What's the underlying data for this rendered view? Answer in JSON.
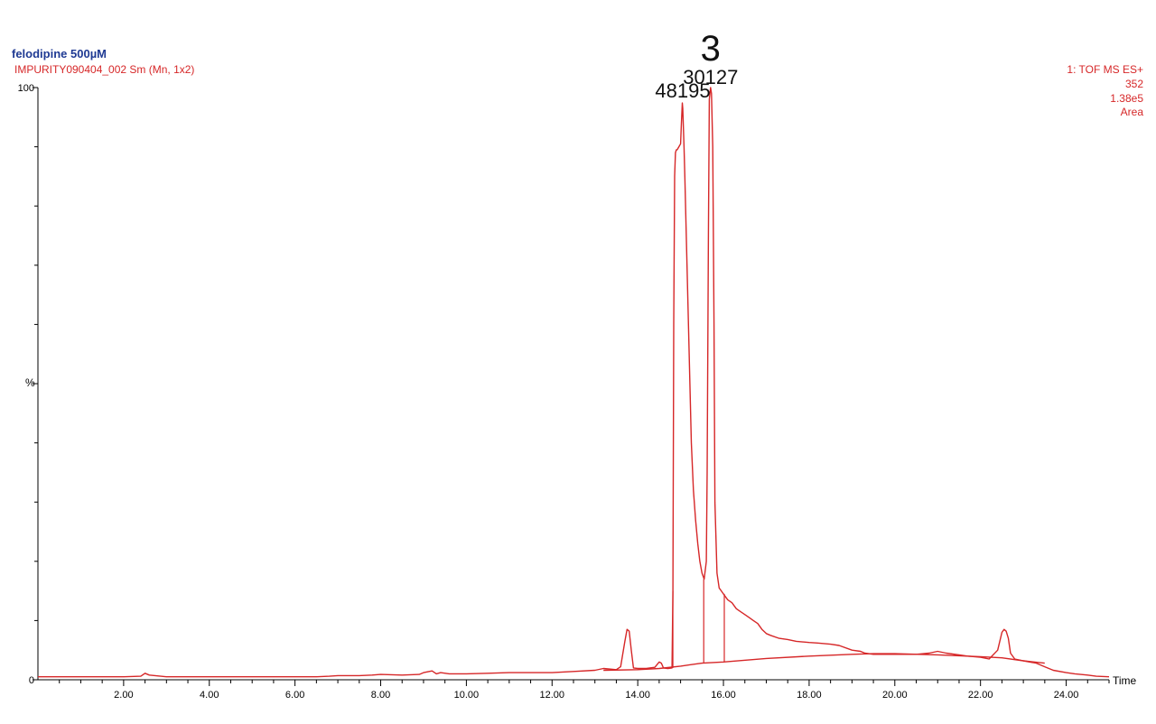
{
  "header": {
    "sample": "felodipine 500µM",
    "file": "IMPURITY090404_002 Sm (Mn, 1x2)",
    "right_info": [
      "1: TOF MS ES+",
      "352",
      "1.38e5",
      "Area"
    ]
  },
  "colors": {
    "trace": "#d62728",
    "title": "#1f3a93",
    "axis": "#000000"
  },
  "chart_data": {
    "type": "line",
    "title": "felodipine 500µM",
    "xlabel": "Time",
    "ylabel": "%",
    "xlim": [
      0.0,
      25.0
    ],
    "ylim": [
      0,
      100
    ],
    "x_ticks": [
      "2.00",
      "4.00",
      "6.00",
      "8.00",
      "10.00",
      "12.00",
      "14.00",
      "16.00",
      "18.00",
      "20.00",
      "22.00",
      "24.00"
    ],
    "y_ticks": [
      "0",
      "100"
    ],
    "annotations": [
      {
        "text": "48195",
        "x": 15.05,
        "y": 97.4,
        "size": "medium"
      },
      {
        "text": "3",
        "x": 15.7,
        "y": 100,
        "size": "large",
        "row": 1
      },
      {
        "text": "30127",
        "x": 15.7,
        "y": 100,
        "size": "medium",
        "row": 2
      }
    ],
    "series": [
      {
        "type": "line",
        "x": [
          0.0,
          0.5,
          1.0,
          1.5,
          2.0,
          2.4,
          2.5,
          2.6,
          3.0,
          4.0,
          5.0,
          6.0,
          6.5,
          6.8,
          7.0,
          7.5,
          7.8,
          8.0,
          8.5,
          8.9,
          9.0,
          9.2,
          9.3,
          9.4,
          9.6,
          10.0,
          10.5,
          11.0,
          11.5,
          12.0,
          12.5,
          13.0,
          13.2,
          13.5,
          13.6,
          13.7,
          13.75,
          13.8,
          13.85,
          13.9,
          14.0,
          14.2,
          14.4,
          14.5,
          14.55,
          14.6,
          14.7,
          14.8,
          14.82,
          14.84,
          14.86,
          14.88,
          14.9,
          14.92,
          14.96,
          15.0,
          15.02,
          15.04,
          15.05,
          15.08,
          15.1,
          15.15,
          15.2,
          15.25,
          15.3,
          15.35,
          15.4,
          15.45,
          15.5,
          15.55,
          15.6,
          15.62,
          15.65,
          15.67,
          15.7,
          15.72,
          15.75,
          15.78,
          15.8,
          15.85,
          15.9,
          15.95,
          16.0,
          16.05,
          16.1,
          16.2,
          16.3,
          16.4,
          16.5,
          16.6,
          16.7,
          16.8,
          16.9,
          17.0,
          17.1,
          17.3,
          17.5,
          17.7,
          18.0,
          18.2,
          18.5,
          18.7,
          19.0,
          19.2,
          19.3,
          19.5,
          20.0,
          20.5,
          20.8,
          21.0,
          21.2,
          21.5,
          21.7,
          22.0,
          22.2,
          22.4,
          22.5,
          22.55,
          22.6,
          22.65,
          22.7,
          22.8,
          23.0,
          23.3,
          23.5,
          23.7,
          24.0,
          24.2,
          24.5,
          24.7,
          25.0
        ],
        "y": [
          0.5,
          0.5,
          0.5,
          0.5,
          0.5,
          0.6,
          1.1,
          0.8,
          0.5,
          0.5,
          0.5,
          0.5,
          0.5,
          0.6,
          0.7,
          0.7,
          0.8,
          0.9,
          0.8,
          0.9,
          1.2,
          1.5,
          1.0,
          1.2,
          1.0,
          1.0,
          1.1,
          1.2,
          1.2,
          1.2,
          1.4,
          1.6,
          1.9,
          1.7,
          2.2,
          6.5,
          8.5,
          8.2,
          5.0,
          2.0,
          1.9,
          1.9,
          2.1,
          3.0,
          2.8,
          2.0,
          1.9,
          2.0,
          15.0,
          60.0,
          85.0,
          89.0,
          89.5,
          89.5,
          90.0,
          90.5,
          94.0,
          97.4,
          96.5,
          90.0,
          85.0,
          70.0,
          55.0,
          40.0,
          32.0,
          27.0,
          23.0,
          20.0,
          18.0,
          17.0,
          20.0,
          35.0,
          75.0,
          98.0,
          100.0,
          99.0,
          90.0,
          60.0,
          30.0,
          18.0,
          15.5,
          15.0,
          14.5,
          14.0,
          13.5,
          13.0,
          12.0,
          11.5,
          11.0,
          10.5,
          10.0,
          9.5,
          8.5,
          7.8,
          7.5,
          7.0,
          6.8,
          6.5,
          6.3,
          6.2,
          6.0,
          5.8,
          5.0,
          4.8,
          4.5,
          4.3,
          4.3,
          4.3,
          4.5,
          4.8,
          4.5,
          4.2,
          4.0,
          3.8,
          3.5,
          5.0,
          8.0,
          8.5,
          8.2,
          7.0,
          4.5,
          3.5,
          3.2,
          2.8,
          2.2,
          1.6,
          1.2,
          1.0,
          0.8,
          0.6,
          0.5
        ]
      },
      {
        "type": "baseline",
        "x": [
          13.2,
          14.0,
          14.5,
          15.0,
          15.5,
          16.0,
          17.0,
          18.0,
          19.0,
          19.5,
          20.0,
          21.0,
          22.0,
          22.5,
          23.0,
          23.5
        ],
        "y": [
          1.6,
          1.7,
          1.9,
          2.3,
          2.8,
          3.0,
          3.6,
          4.0,
          4.3,
          4.4,
          4.4,
          4.2,
          3.9,
          3.7,
          3.2,
          2.8
        ]
      }
    ],
    "integration_drops": [
      {
        "x": 14.82,
        "y_top": 15.0,
        "y_bottom": 2.0
      },
      {
        "x": 15.54,
        "y_top": 17.0,
        "y_bottom": 2.8
      },
      {
        "x": 16.02,
        "y_top": 14.5,
        "y_bottom": 3.0
      }
    ],
    "grid": false,
    "legend": "none"
  }
}
